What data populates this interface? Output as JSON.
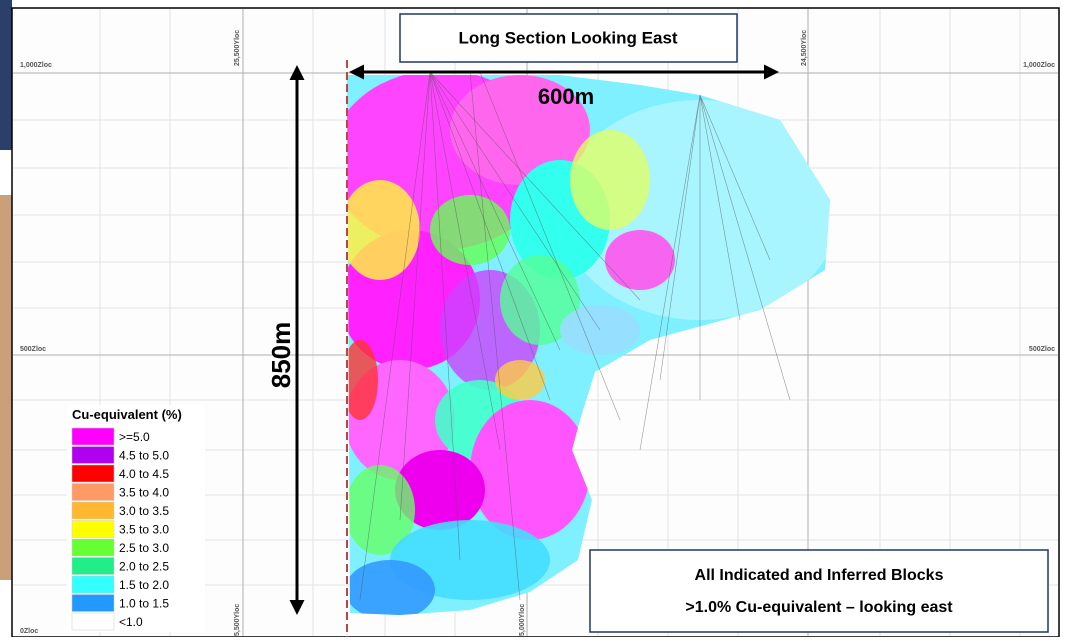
{
  "title": "Long Section Looking East",
  "width_label": "600m",
  "depth_label": "850m",
  "z_labels": {
    "top_left": "1,000Zloc",
    "top_right": "1,000Zloc",
    "mid_left": "500Zloc",
    "mid_right": "500Zloc",
    "bottom_left": "0Zloc"
  },
  "y_labels": {
    "top_a": "25,500Yloc",
    "top_b": "24,500Yloc",
    "bottom_a": "5,500Yloc",
    "bottom_b": "5,000Yloc"
  },
  "legend": {
    "title": "Cu-equivalent (%)",
    "items": [
      {
        "label": ">=5.0",
        "color": "#ff00ff"
      },
      {
        "label": "4.5 to 5.0",
        "color": "#b000f0"
      },
      {
        "label": "4.0 to 4.5",
        "color": "#ff0000"
      },
      {
        "label": "3.5 to 4.0",
        "color": "#ff9966"
      },
      {
        "label": "3.0 to 3.5",
        "color": "#ffb830"
      },
      {
        "label": "3.5 to 3.0",
        "color": "#ffff00"
      },
      {
        "label": "2.5 to 3.0",
        "color": "#66ff33"
      },
      {
        "label": "2.0 to 2.5",
        "color": "#22ee88"
      },
      {
        "label": "1.5 to 2.0",
        "color": "#33ffff"
      },
      {
        "label": "1.0 to 1.5",
        "color": "#2299ff"
      },
      {
        "label": "<1.0",
        "color": "#ffffff"
      }
    ]
  },
  "note": {
    "line1": "All Indicated and Inferred Blocks",
    "line2": ">1.0% Cu-equivalent – looking east"
  }
}
